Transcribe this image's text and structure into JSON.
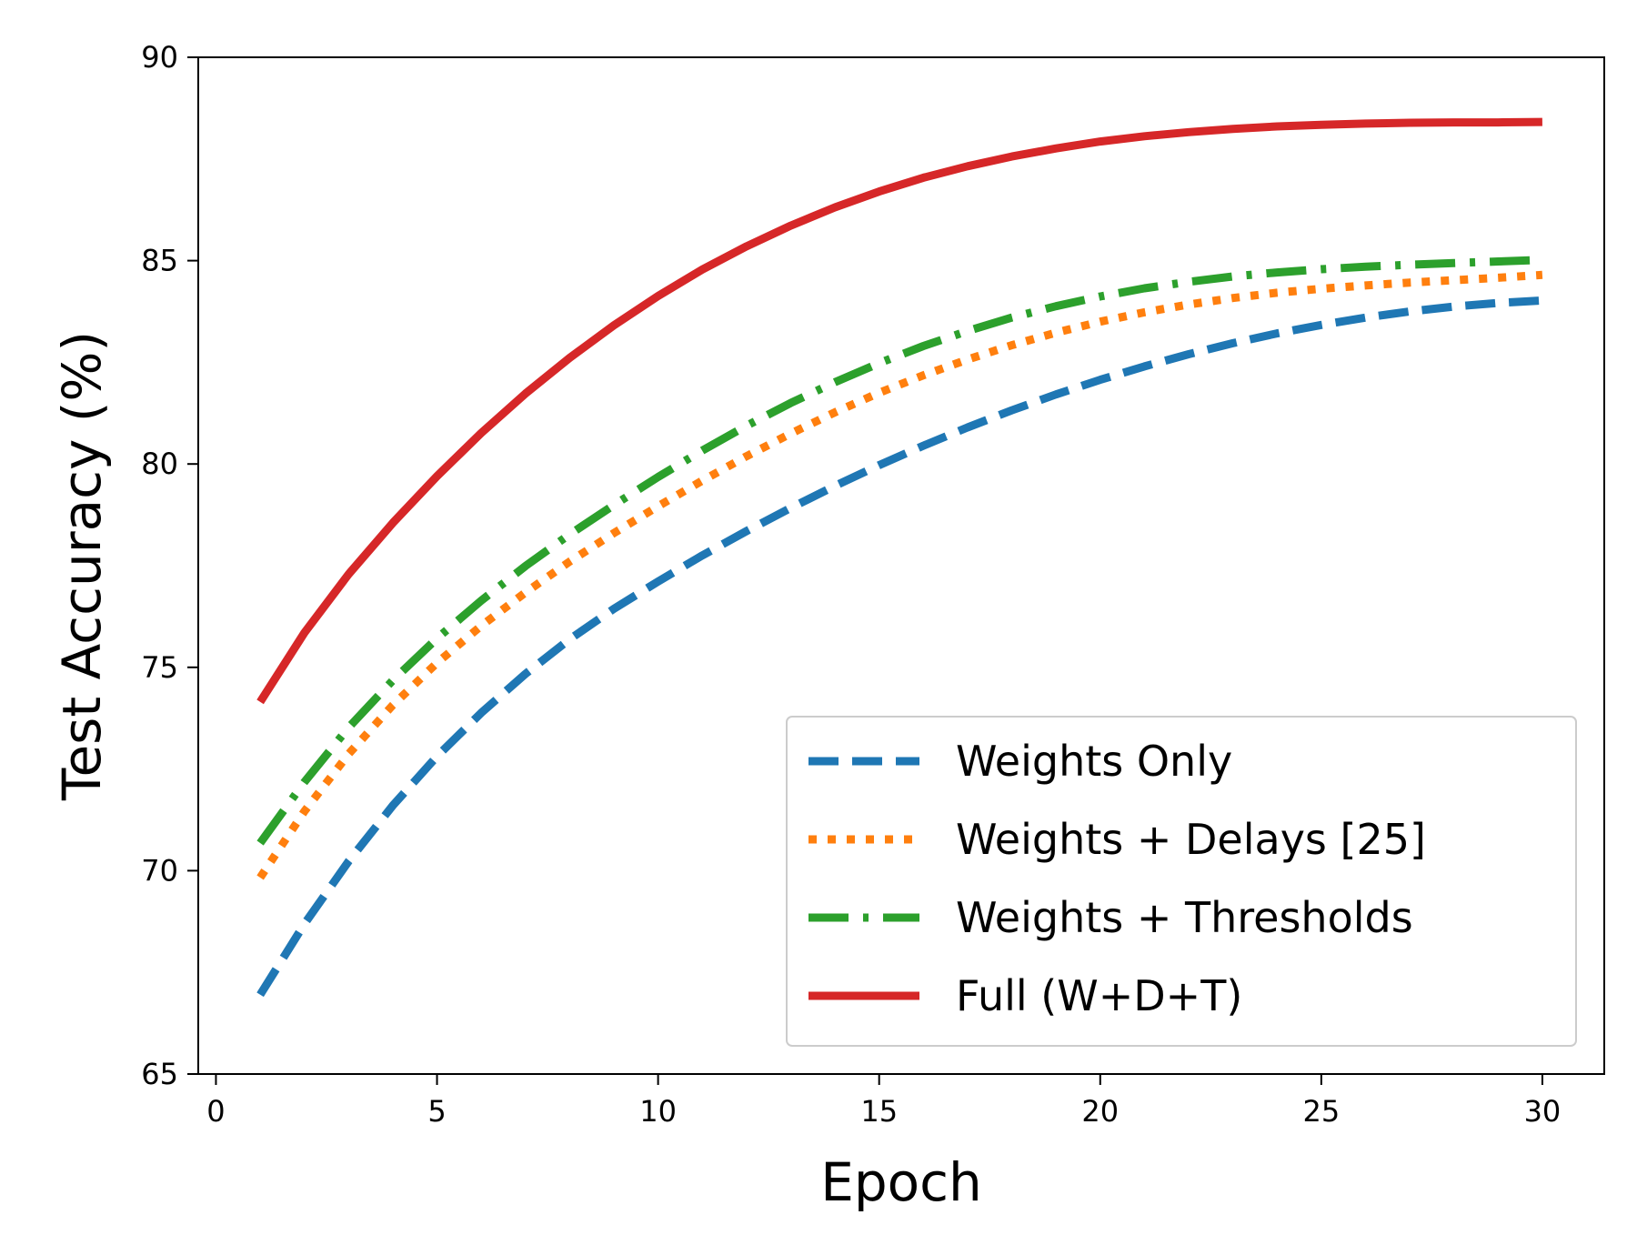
{
  "chart_data": {
    "type": "line",
    "title": "",
    "xlabel": "Epoch",
    "ylabel": "Test Accuracy (%)",
    "xlim": [
      -0.4,
      31.4
    ],
    "ylim": [
      65,
      90
    ],
    "xticks": [
      0,
      5,
      10,
      15,
      20,
      25,
      30
    ],
    "yticks": [
      65,
      70,
      75,
      80,
      85,
      90
    ],
    "legend_position": "lower-right",
    "x": [
      1,
      2,
      3,
      4,
      5,
      6,
      7,
      8,
      9,
      10,
      11,
      12,
      13,
      14,
      15,
      16,
      17,
      18,
      19,
      20,
      21,
      22,
      23,
      24,
      25,
      26,
      27,
      28,
      29,
      30
    ],
    "series": [
      {
        "name": "Weights Only",
        "color": "#1f77b4",
        "style": "dashed",
        "values": [
          66.95,
          68.69,
          70.23,
          71.6,
          72.81,
          73.88,
          74.84,
          75.69,
          76.44,
          77.11,
          77.75,
          78.35,
          78.92,
          79.46,
          79.97,
          80.45,
          80.9,
          81.32,
          81.71,
          82.07,
          82.4,
          82.7,
          82.97,
          83.21,
          83.42,
          83.6,
          83.75,
          83.87,
          83.96,
          84.02
        ]
      },
      {
        "name": "Weights + Delays [25]",
        "color": "#ff7f0e",
        "style": "dotted",
        "values": [
          69.83,
          71.46,
          72.87,
          74.07,
          75.11,
          76.02,
          76.84,
          77.6,
          78.3,
          78.96,
          79.59,
          80.19,
          80.75,
          81.27,
          81.75,
          82.18,
          82.57,
          82.92,
          83.23,
          83.5,
          83.73,
          83.92,
          84.08,
          84.21,
          84.31,
          84.39,
          84.46,
          84.52,
          84.58,
          84.65
        ]
      },
      {
        "name": "Weights + Thresholds",
        "color": "#2ca02c",
        "style": "dashdot",
        "values": [
          70.68,
          72.18,
          73.52,
          74.68,
          75.71,
          76.64,
          77.49,
          78.27,
          78.99,
          79.68,
          80.33,
          80.94,
          81.5,
          82.01,
          82.48,
          82.9,
          83.27,
          83.6,
          83.88,
          84.12,
          84.32,
          84.48,
          84.61,
          84.71,
          84.79,
          84.85,
          84.9,
          84.94,
          84.98,
          85.02
        ]
      },
      {
        "name": "Full (W+D+T)",
        "color": "#d62728",
        "style": "solid",
        "values": [
          74.15,
          75.85,
          77.29,
          78.55,
          79.7,
          80.76,
          81.73,
          82.61,
          83.41,
          84.13,
          84.78,
          85.35,
          85.86,
          86.31,
          86.7,
          87.04,
          87.32,
          87.56,
          87.76,
          87.93,
          88.06,
          88.16,
          88.24,
          88.3,
          88.34,
          88.37,
          88.39,
          88.4,
          88.4,
          88.41
        ]
      }
    ]
  }
}
